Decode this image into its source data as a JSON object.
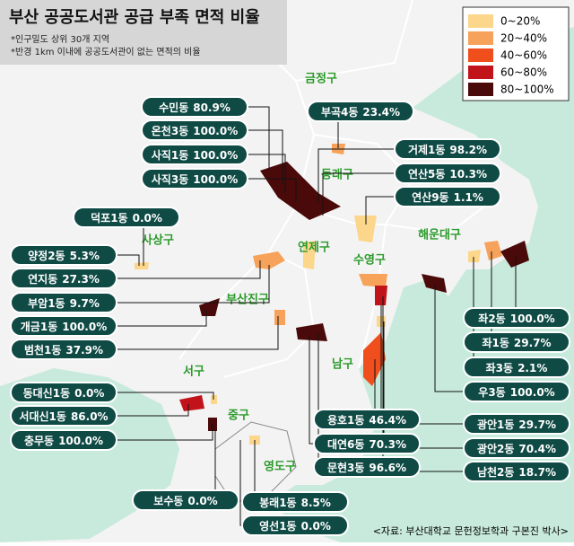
{
  "header": {
    "title": "부산 공공도서관 공급 부족 면적 비율",
    "notes": [
      "*인구밀도 상위 30개 지역",
      "*반경 1km 이내에 공공도서관이 없는 면적의 비율"
    ]
  },
  "legend": [
    {
      "label": "0~20%",
      "color": "#fcd68a"
    },
    {
      "label": "20~40%",
      "color": "#f7a25a"
    },
    {
      "label": "40~60%",
      "color": "#f04e1c"
    },
    {
      "label": "60~80%",
      "color": "#c0141a"
    },
    {
      "label": "80~100%",
      "color": "#4a0a0a"
    }
  ],
  "districts": [
    "금정구",
    "동래구",
    "사상구",
    "연제구",
    "해운대구",
    "수영구",
    "부산진구",
    "남구",
    "서구",
    "중구",
    "영도구"
  ],
  "callouts": [
    {
      "name": "수민동",
      "value": "80.9%"
    },
    {
      "name": "온천3동",
      "value": "100.0%"
    },
    {
      "name": "사직1동",
      "value": "100.0%"
    },
    {
      "name": "사직3동",
      "value": "100.0%"
    },
    {
      "name": "부곡4동",
      "value": "23.4%"
    },
    {
      "name": "거제1동",
      "value": "98.2%"
    },
    {
      "name": "연산5동",
      "value": "10.3%"
    },
    {
      "name": "연산9동",
      "value": "1.1%"
    },
    {
      "name": "덕포1동",
      "value": "0.0%"
    },
    {
      "name": "양정2동",
      "value": "5.3%"
    },
    {
      "name": "연지동",
      "value": "27.3%"
    },
    {
      "name": "부암1동",
      "value": "9.7%"
    },
    {
      "name": "개금1동",
      "value": "100.0%"
    },
    {
      "name": "범천1동",
      "value": "37.9%"
    },
    {
      "name": "좌2동",
      "value": "100.0%"
    },
    {
      "name": "좌1동",
      "value": "29.7%"
    },
    {
      "name": "좌3동",
      "value": "2.1%"
    },
    {
      "name": "우3동",
      "value": "100.0%"
    },
    {
      "name": "광안1동",
      "value": "29.7%"
    },
    {
      "name": "광안2동",
      "value": "70.4%"
    },
    {
      "name": "남천2동",
      "value": "18.7%"
    },
    {
      "name": "동대신1동",
      "value": "0.0%"
    },
    {
      "name": "서대신1동",
      "value": "86.0%"
    },
    {
      "name": "충무동",
      "value": "100.0%"
    },
    {
      "name": "용호1동",
      "value": "46.4%"
    },
    {
      "name": "대연6동",
      "value": "70.3%"
    },
    {
      "name": "문현3동",
      "value": "96.6%"
    },
    {
      "name": "보수동",
      "value": "0.0%"
    },
    {
      "name": "봉래1동",
      "value": "8.5%"
    },
    {
      "name": "영선1동",
      "value": "0.0%"
    }
  ],
  "source": "<자료: 부산대학교 문헌정보학과 구본진 박사>"
}
